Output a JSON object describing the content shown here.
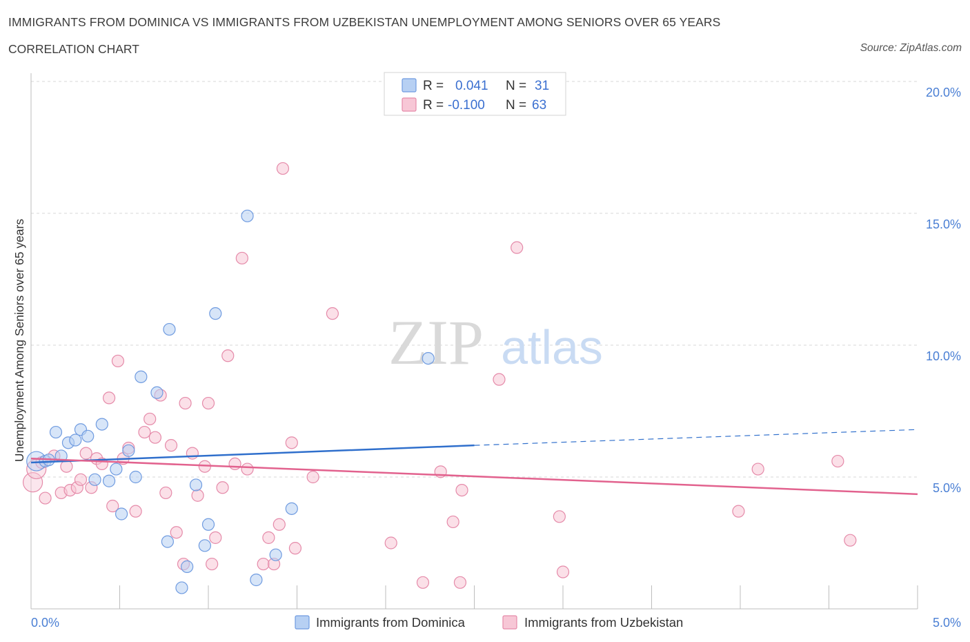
{
  "header": {
    "title": "IMMIGRANTS FROM DOMINICA VS IMMIGRANTS FROM UZBEKISTAN UNEMPLOYMENT AMONG SENIORS OVER 65 YEARS",
    "subtitle": "CORRELATION CHART",
    "source": "Source: ZipAtlas.com"
  },
  "colors": {
    "dominica_fill": "#b7d0f3",
    "dominica_stroke": "#6f9be0",
    "dominica_line": "#2f6fcc",
    "uzbekistan_fill": "#f7c7d6",
    "uzbekistan_stroke": "#e58aa9",
    "uzbekistan_line": "#e2628e",
    "tick_text": "#4a7fd4",
    "grid": "#d7d7d7"
  },
  "legend": {
    "r_label": "R =",
    "n_label": "N =",
    "rows": [
      {
        "series": "Immigrants from Dominica",
        "r": "0.041",
        "n": "31"
      },
      {
        "series": "Immigrants from Uzbekistan",
        "r": "-0.100",
        "n": "63"
      }
    ]
  },
  "watermark": {
    "zip": "ZIP",
    "atlas": "atlas"
  },
  "chart_data": {
    "type": "scatter",
    "title": "IMMIGRANTS FROM DOMINICA VS IMMIGRANTS FROM UZBEKISTAN UNEMPLOYMENT AMONG SENIORS OVER 65 YEARS",
    "subtitle": "CORRELATION CHART",
    "xlabel": "",
    "ylabel": "Unemployment Among Seniors over 65 years",
    "xlim": [
      0,
      5.0
    ],
    "ylim": [
      0,
      20.0
    ],
    "x_tick_labels": [
      "0.0%",
      "5.0%"
    ],
    "y_ticks": [
      5.0,
      10.0,
      15.0,
      20.0
    ],
    "y_tick_labels": [
      "5.0%",
      "10.0%",
      "15.0%",
      "20.0%"
    ],
    "grid": true,
    "series": [
      {
        "name": "Immigrants from Dominica",
        "r": 0.041,
        "n": 31,
        "trend": {
          "x": [
            0.0,
            2.5
          ],
          "y": [
            5.55,
            6.2
          ],
          "dashed_to": [
            5.0,
            6.8
          ]
        },
        "points": [
          [
            0.03,
            5.6
          ],
          [
            0.08,
            5.6
          ],
          [
            0.14,
            6.7
          ],
          [
            0.17,
            5.8
          ],
          [
            0.21,
            6.3
          ],
          [
            0.25,
            6.4
          ],
          [
            0.28,
            6.8
          ],
          [
            0.32,
            6.55
          ],
          [
            0.36,
            4.9
          ],
          [
            0.4,
            7.0
          ],
          [
            0.44,
            4.85
          ],
          [
            0.48,
            5.3
          ],
          [
            0.51,
            3.6
          ],
          [
            0.55,
            6.0
          ],
          [
            0.59,
            5.0
          ],
          [
            0.62,
            8.8
          ],
          [
            0.71,
            8.2
          ],
          [
            0.77,
            2.55
          ],
          [
            0.78,
            10.6
          ],
          [
            0.85,
            0.8
          ],
          [
            0.88,
            1.6
          ],
          [
            0.93,
            4.7
          ],
          [
            0.98,
            2.4
          ],
          [
            1.0,
            3.2
          ],
          [
            1.04,
            11.2
          ],
          [
            1.22,
            14.9
          ],
          [
            1.27,
            1.1
          ],
          [
            1.38,
            2.05
          ],
          [
            1.47,
            3.8
          ],
          [
            2.24,
            9.5
          ],
          [
            0.1,
            5.65
          ]
        ]
      },
      {
        "name": "Immigrants from Uzbekistan",
        "r": -0.1,
        "n": 63,
        "trend": {
          "x": [
            0.0,
            5.0
          ],
          "y": [
            5.7,
            4.35
          ]
        },
        "points": [
          [
            0.01,
            4.8
          ],
          [
            0.03,
            5.3
          ],
          [
            0.08,
            4.2
          ],
          [
            0.13,
            5.8
          ],
          [
            0.17,
            4.4
          ],
          [
            0.2,
            5.4
          ],
          [
            0.22,
            4.5
          ],
          [
            0.26,
            4.6
          ],
          [
            0.28,
            4.9
          ],
          [
            0.31,
            5.9
          ],
          [
            0.34,
            4.6
          ],
          [
            0.37,
            5.7
          ],
          [
            0.4,
            5.5
          ],
          [
            0.44,
            8.0
          ],
          [
            0.46,
            3.9
          ],
          [
            0.49,
            9.4
          ],
          [
            0.52,
            5.7
          ],
          [
            0.55,
            6.1
          ],
          [
            0.59,
            3.7
          ],
          [
            0.64,
            6.7
          ],
          [
            0.67,
            7.2
          ],
          [
            0.7,
            6.5
          ],
          [
            0.73,
            8.1
          ],
          [
            0.76,
            4.4
          ],
          [
            0.79,
            6.2
          ],
          [
            0.82,
            2.9
          ],
          [
            0.86,
            1.7
          ],
          [
            0.87,
            7.8
          ],
          [
            0.91,
            5.9
          ],
          [
            0.94,
            4.3
          ],
          [
            0.98,
            5.4
          ],
          [
            1.0,
            7.8
          ],
          [
            1.02,
            1.7
          ],
          [
            1.04,
            2.7
          ],
          [
            1.08,
            4.6
          ],
          [
            1.11,
            9.6
          ],
          [
            1.15,
            5.5
          ],
          [
            1.19,
            13.3
          ],
          [
            1.22,
            5.3
          ],
          [
            1.31,
            1.7
          ],
          [
            1.34,
            2.7
          ],
          [
            1.37,
            1.7
          ],
          [
            1.4,
            3.2
          ],
          [
            1.42,
            16.7
          ],
          [
            1.47,
            6.3
          ],
          [
            1.49,
            2.3
          ],
          [
            1.59,
            5.0
          ],
          [
            1.7,
            11.2
          ],
          [
            2.03,
            2.5
          ],
          [
            2.21,
            1.0
          ],
          [
            2.31,
            5.2
          ],
          [
            2.38,
            3.3
          ],
          [
            2.43,
            4.5
          ],
          [
            2.42,
            1.0
          ],
          [
            2.64,
            8.7
          ],
          [
            2.74,
            13.7
          ],
          [
            2.98,
            3.5
          ],
          [
            3.0,
            1.4
          ],
          [
            3.99,
            3.7
          ],
          [
            4.1,
            5.3
          ],
          [
            4.55,
            5.6
          ],
          [
            4.62,
            2.6
          ],
          [
            0.06,
            5.55
          ]
        ]
      }
    ]
  }
}
